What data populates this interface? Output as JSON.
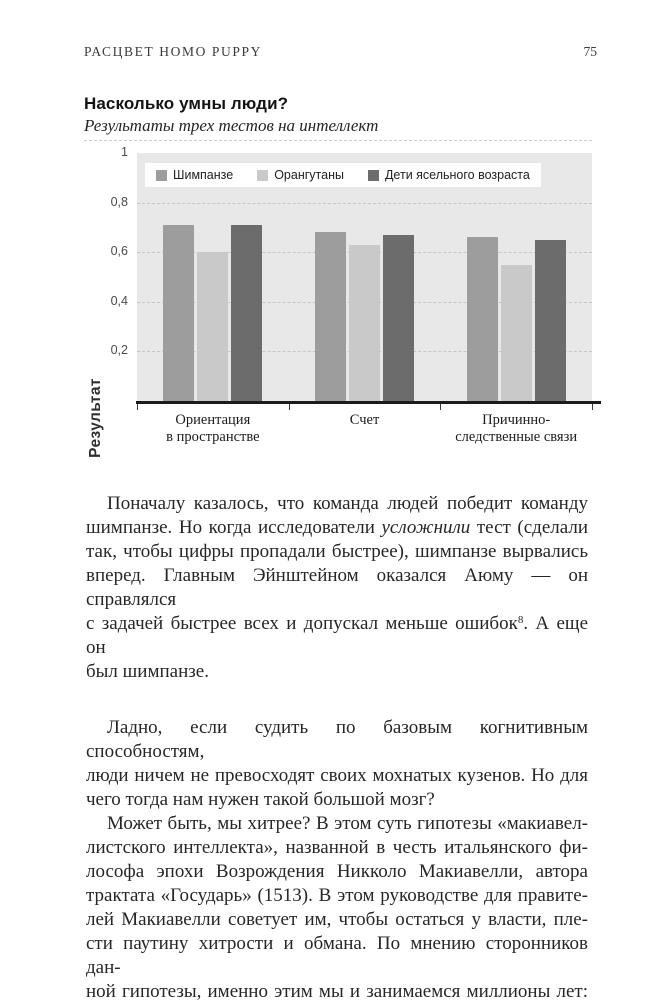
{
  "page": {
    "running_title": "РАСЦВЕТ HOMO PUPPY",
    "page_number": "75"
  },
  "chart": {
    "title": "Насколько умны люди?",
    "subtitle": "Результаты трех тестов на интеллект"
  },
  "chart_data": {
    "type": "bar",
    "title": "Насколько умны люди?",
    "subtitle": "Результаты трех тестов на интеллект",
    "categories": [
      "Ориентация в пространстве",
      "Счет",
      "Причинно-следственные связи"
    ],
    "category_lines": [
      [
        "Ориентация",
        "в пространстве"
      ],
      [
        "Счет"
      ],
      [
        "Причинно-",
        "следственные связи"
      ]
    ],
    "series": [
      {
        "name": "Шимпанзе",
        "color": "#9d9d9d",
        "values": [
          0.71,
          0.68,
          0.66
        ]
      },
      {
        "name": "Орангутаны",
        "color": "#c9c9c9",
        "values": [
          0.6,
          0.63,
          0.55
        ]
      },
      {
        "name": "Дети ясельного возраста",
        "color": "#6c6c6c",
        "values": [
          0.71,
          0.67,
          0.65
        ]
      }
    ],
    "ylabel": "Результат",
    "xlabel": "",
    "ylim": [
      0,
      1
    ],
    "yticks": [
      {
        "v": 1,
        "label": "1"
      },
      {
        "v": 0.8,
        "label": "0,8"
      },
      {
        "v": 0.6,
        "label": "0,6"
      },
      {
        "v": 0.4,
        "label": "0,4"
      },
      {
        "v": 0.2,
        "label": "0,2"
      }
    ],
    "grid": "horizontal-dashed",
    "legend_position": "top-inside",
    "plot_background": "#e8e8e8"
  },
  "colors": {
    "plot_bg": "#e8e8e8",
    "gridline": "#c6c6c6",
    "axis": "#1b1b1b",
    "text": "#262626"
  },
  "body": {
    "paragraphs": [
      {
        "spaced": false,
        "lines": [
          {
            "indent": true,
            "fill": true,
            "segments": [
              {
                "t": "Поначалу казалось, что команда людей победит команду"
              }
            ]
          },
          {
            "indent": false,
            "fill": true,
            "segments": [
              {
                "t": "шимпанзе. Но когда исследователи "
              },
              {
                "t": "усложнили",
                "i": true
              },
              {
                "t": " тест (сделали"
              }
            ]
          },
          {
            "indent": false,
            "fill": true,
            "segments": [
              {
                "t": "так, чтобы цифры пропадали быстрее), шимпанзе вырвались"
              }
            ]
          },
          {
            "indent": false,
            "fill": true,
            "segments": [
              {
                "t": "вперед. Главным Эйнштейном оказался Аюму — он справлялся"
              }
            ]
          },
          {
            "indent": false,
            "fill": true,
            "segments": [
              {
                "t": "с задачей быстрее всех и допускал меньше ошибок"
              },
              {
                "t": "8",
                "sup": true
              },
              {
                "t": ". А еще он"
              }
            ]
          },
          {
            "indent": false,
            "fill": false,
            "segments": [
              {
                "t": "был шимпанзе."
              }
            ]
          }
        ]
      },
      {
        "spaced": true,
        "lines": [
          {
            "indent": true,
            "fill": true,
            "segments": [
              {
                "t": "Ладно, если судить по базовым когнитивным способностям,"
              }
            ]
          },
          {
            "indent": false,
            "fill": true,
            "segments": [
              {
                "t": "люди ничем не превосходят своих мохнатых кузенов. Но для"
              }
            ]
          },
          {
            "indent": false,
            "fill": false,
            "segments": [
              {
                "t": "чего тогда нам нужен такой большой мозг?"
              }
            ]
          }
        ]
      },
      {
        "spaced": false,
        "lines": [
          {
            "indent": true,
            "fill": true,
            "segments": [
              {
                "t": "Может быть, мы хитрее? В этом суть гипотезы «макиавел-"
              }
            ]
          },
          {
            "indent": false,
            "fill": true,
            "segments": [
              {
                "t": "листского интеллекта», названной в честь итальянского фи-"
              }
            ]
          },
          {
            "indent": false,
            "fill": true,
            "segments": [
              {
                "t": "лософа эпохи Возрождения Никколо Макиавелли, автора"
              }
            ]
          },
          {
            "indent": false,
            "fill": true,
            "segments": [
              {
                "t": "трактата «Государь» (1513). В этом руководстве для правите-"
              }
            ]
          },
          {
            "indent": false,
            "fill": true,
            "segments": [
              {
                "t": "лей Макиавелли советует им, чтобы остаться у власти, пле-"
              }
            ]
          },
          {
            "indent": false,
            "fill": true,
            "segments": [
              {
                "t": "сти паутину хитрости и обмана. По мнению сторонников дан-"
              }
            ]
          },
          {
            "indent": false,
            "fill": true,
            "segments": [
              {
                "t": "ной гипотезы, именно этим мы и занимаемся миллионы лет:"
              }
            ]
          }
        ]
      }
    ]
  }
}
